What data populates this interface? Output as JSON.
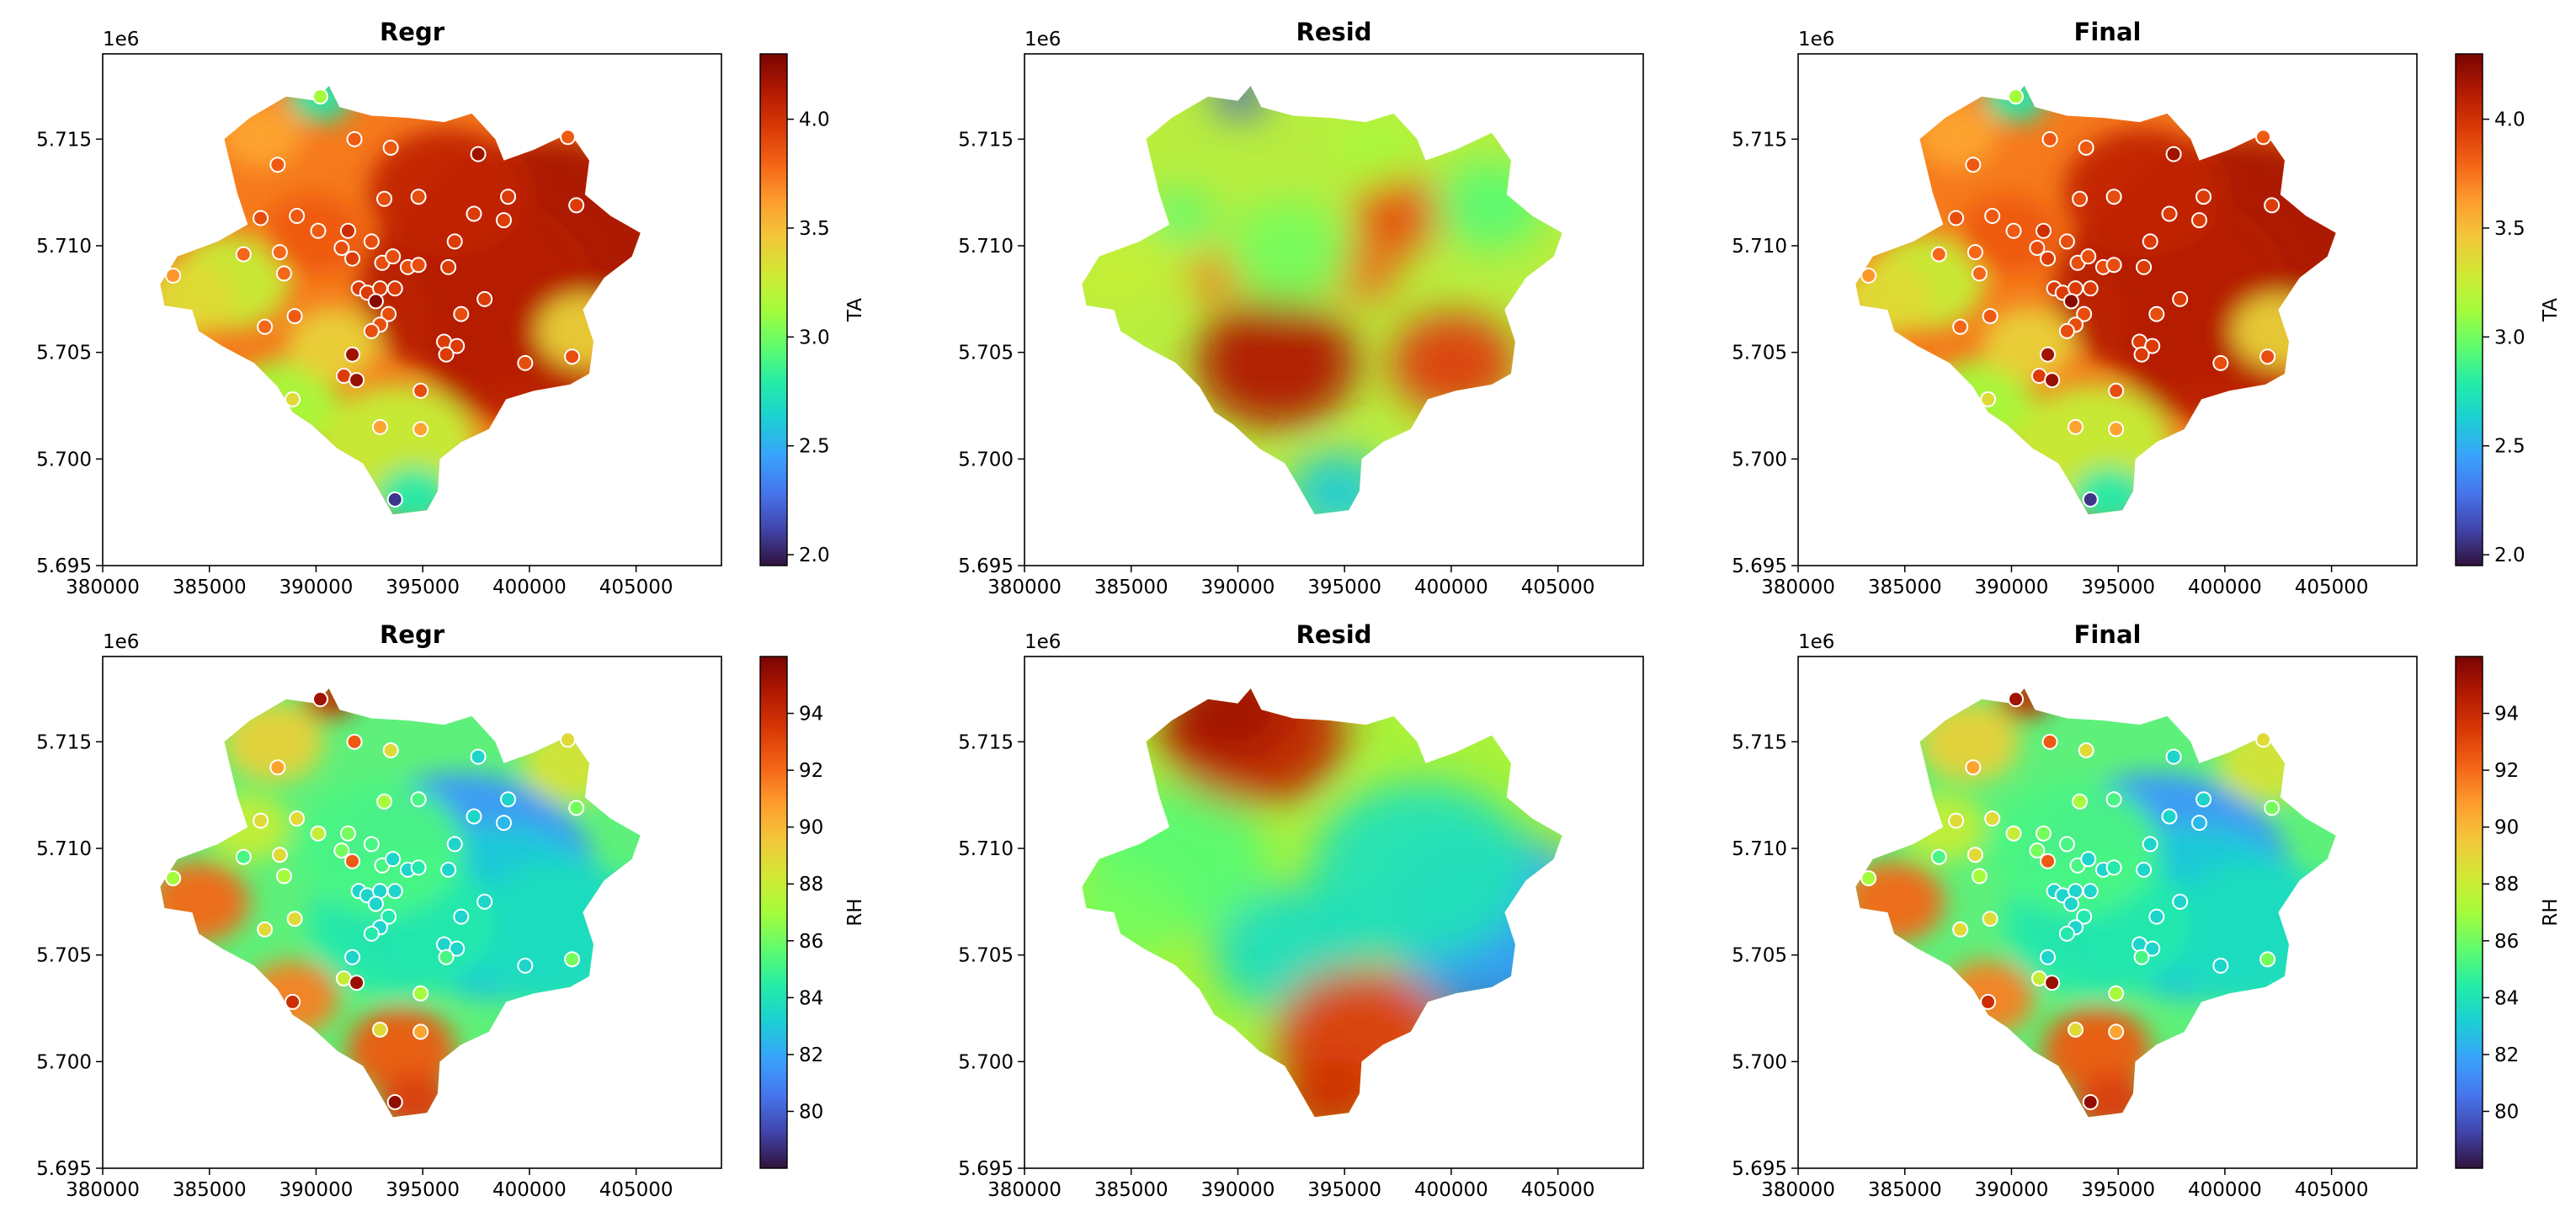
{
  "figure": {
    "colormap": "turbo",
    "x_axis": {
      "range": [
        380000,
        409000
      ],
      "ticks": [
        380000,
        385000,
        390000,
        395000,
        400000,
        405000
      ]
    },
    "y_axis": {
      "range": [
        5.695,
        5.719
      ],
      "ticks": [
        5.695,
        5.7,
        5.705,
        5.71,
        5.715
      ],
      "offset_label": "1e6"
    }
  },
  "chart_data": [
    {
      "type": "heatmap",
      "row": 1,
      "col": 1,
      "title": "Regr",
      "variable": "TA",
      "colorbar": {
        "label": "TA",
        "range": [
          1.95,
          4.3
        ],
        "ticks": [
          2.0,
          2.5,
          3.0,
          3.5,
          4.0
        ]
      },
      "show_stations": true
    },
    {
      "type": "heatmap",
      "row": 1,
      "col": 2,
      "title": "Resid",
      "variable": "TA",
      "show_stations": false
    },
    {
      "type": "heatmap",
      "row": 1,
      "col": 3,
      "title": "Final",
      "variable": "TA",
      "colorbar": {
        "label": "TA",
        "range": [
          1.95,
          4.3
        ],
        "ticks": [
          2.0,
          2.5,
          3.0,
          3.5,
          4.0
        ]
      },
      "show_stations": true
    },
    {
      "type": "heatmap",
      "row": 2,
      "col": 1,
      "title": "Regr",
      "variable": "RH",
      "colorbar": {
        "label": "RH",
        "range": [
          78,
          96
        ],
        "ticks": [
          80,
          82,
          84,
          86,
          88,
          90,
          92,
          94
        ]
      },
      "show_stations": true
    },
    {
      "type": "heatmap",
      "row": 2,
      "col": 2,
      "title": "Resid",
      "variable": "RH",
      "show_stations": false
    },
    {
      "type": "heatmap",
      "row": 2,
      "col": 3,
      "title": "Final",
      "variable": "RH",
      "colorbar": {
        "label": "RH",
        "range": [
          78,
          96
        ],
        "ticks": [
          80,
          82,
          84,
          86,
          88,
          90,
          92,
          94
        ]
      },
      "show_stations": true
    }
  ]
}
